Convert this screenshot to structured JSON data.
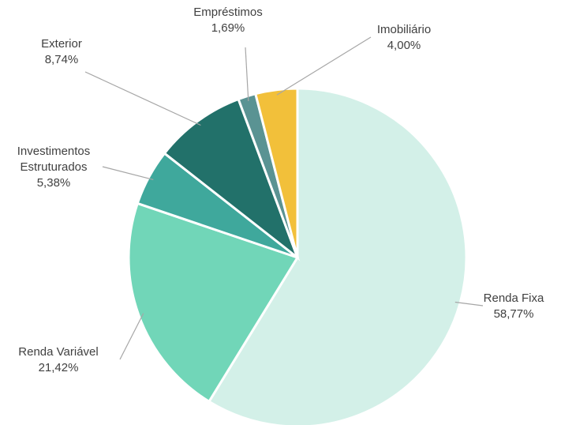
{
  "chart_data": {
    "type": "pie",
    "title": "",
    "start_angle_deg": 0,
    "direction": "clockwise",
    "slices": [
      {
        "label": "Renda Fixa",
        "value": 58.77,
        "value_label": "58,77%",
        "color": "#d3f0e8"
      },
      {
        "label": "Renda Variável",
        "value": 21.42,
        "value_label": "21,42%",
        "color": "#71d6b8"
      },
      {
        "label": "Investimentos Estruturados",
        "value": 5.38,
        "value_label": "5,38%",
        "color": "#3fa89c"
      },
      {
        "label": "Exterior",
        "value": 8.74,
        "value_label": "8,74%",
        "color": "#22716a"
      },
      {
        "label": "Empréstimos",
        "value": 1.69,
        "value_label": "1,69%",
        "color": "#5a9393"
      },
      {
        "label": "Imobiliário",
        "value": 4.0,
        "value_label": "4,00%",
        "color": "#f2c03a"
      }
    ]
  }
}
